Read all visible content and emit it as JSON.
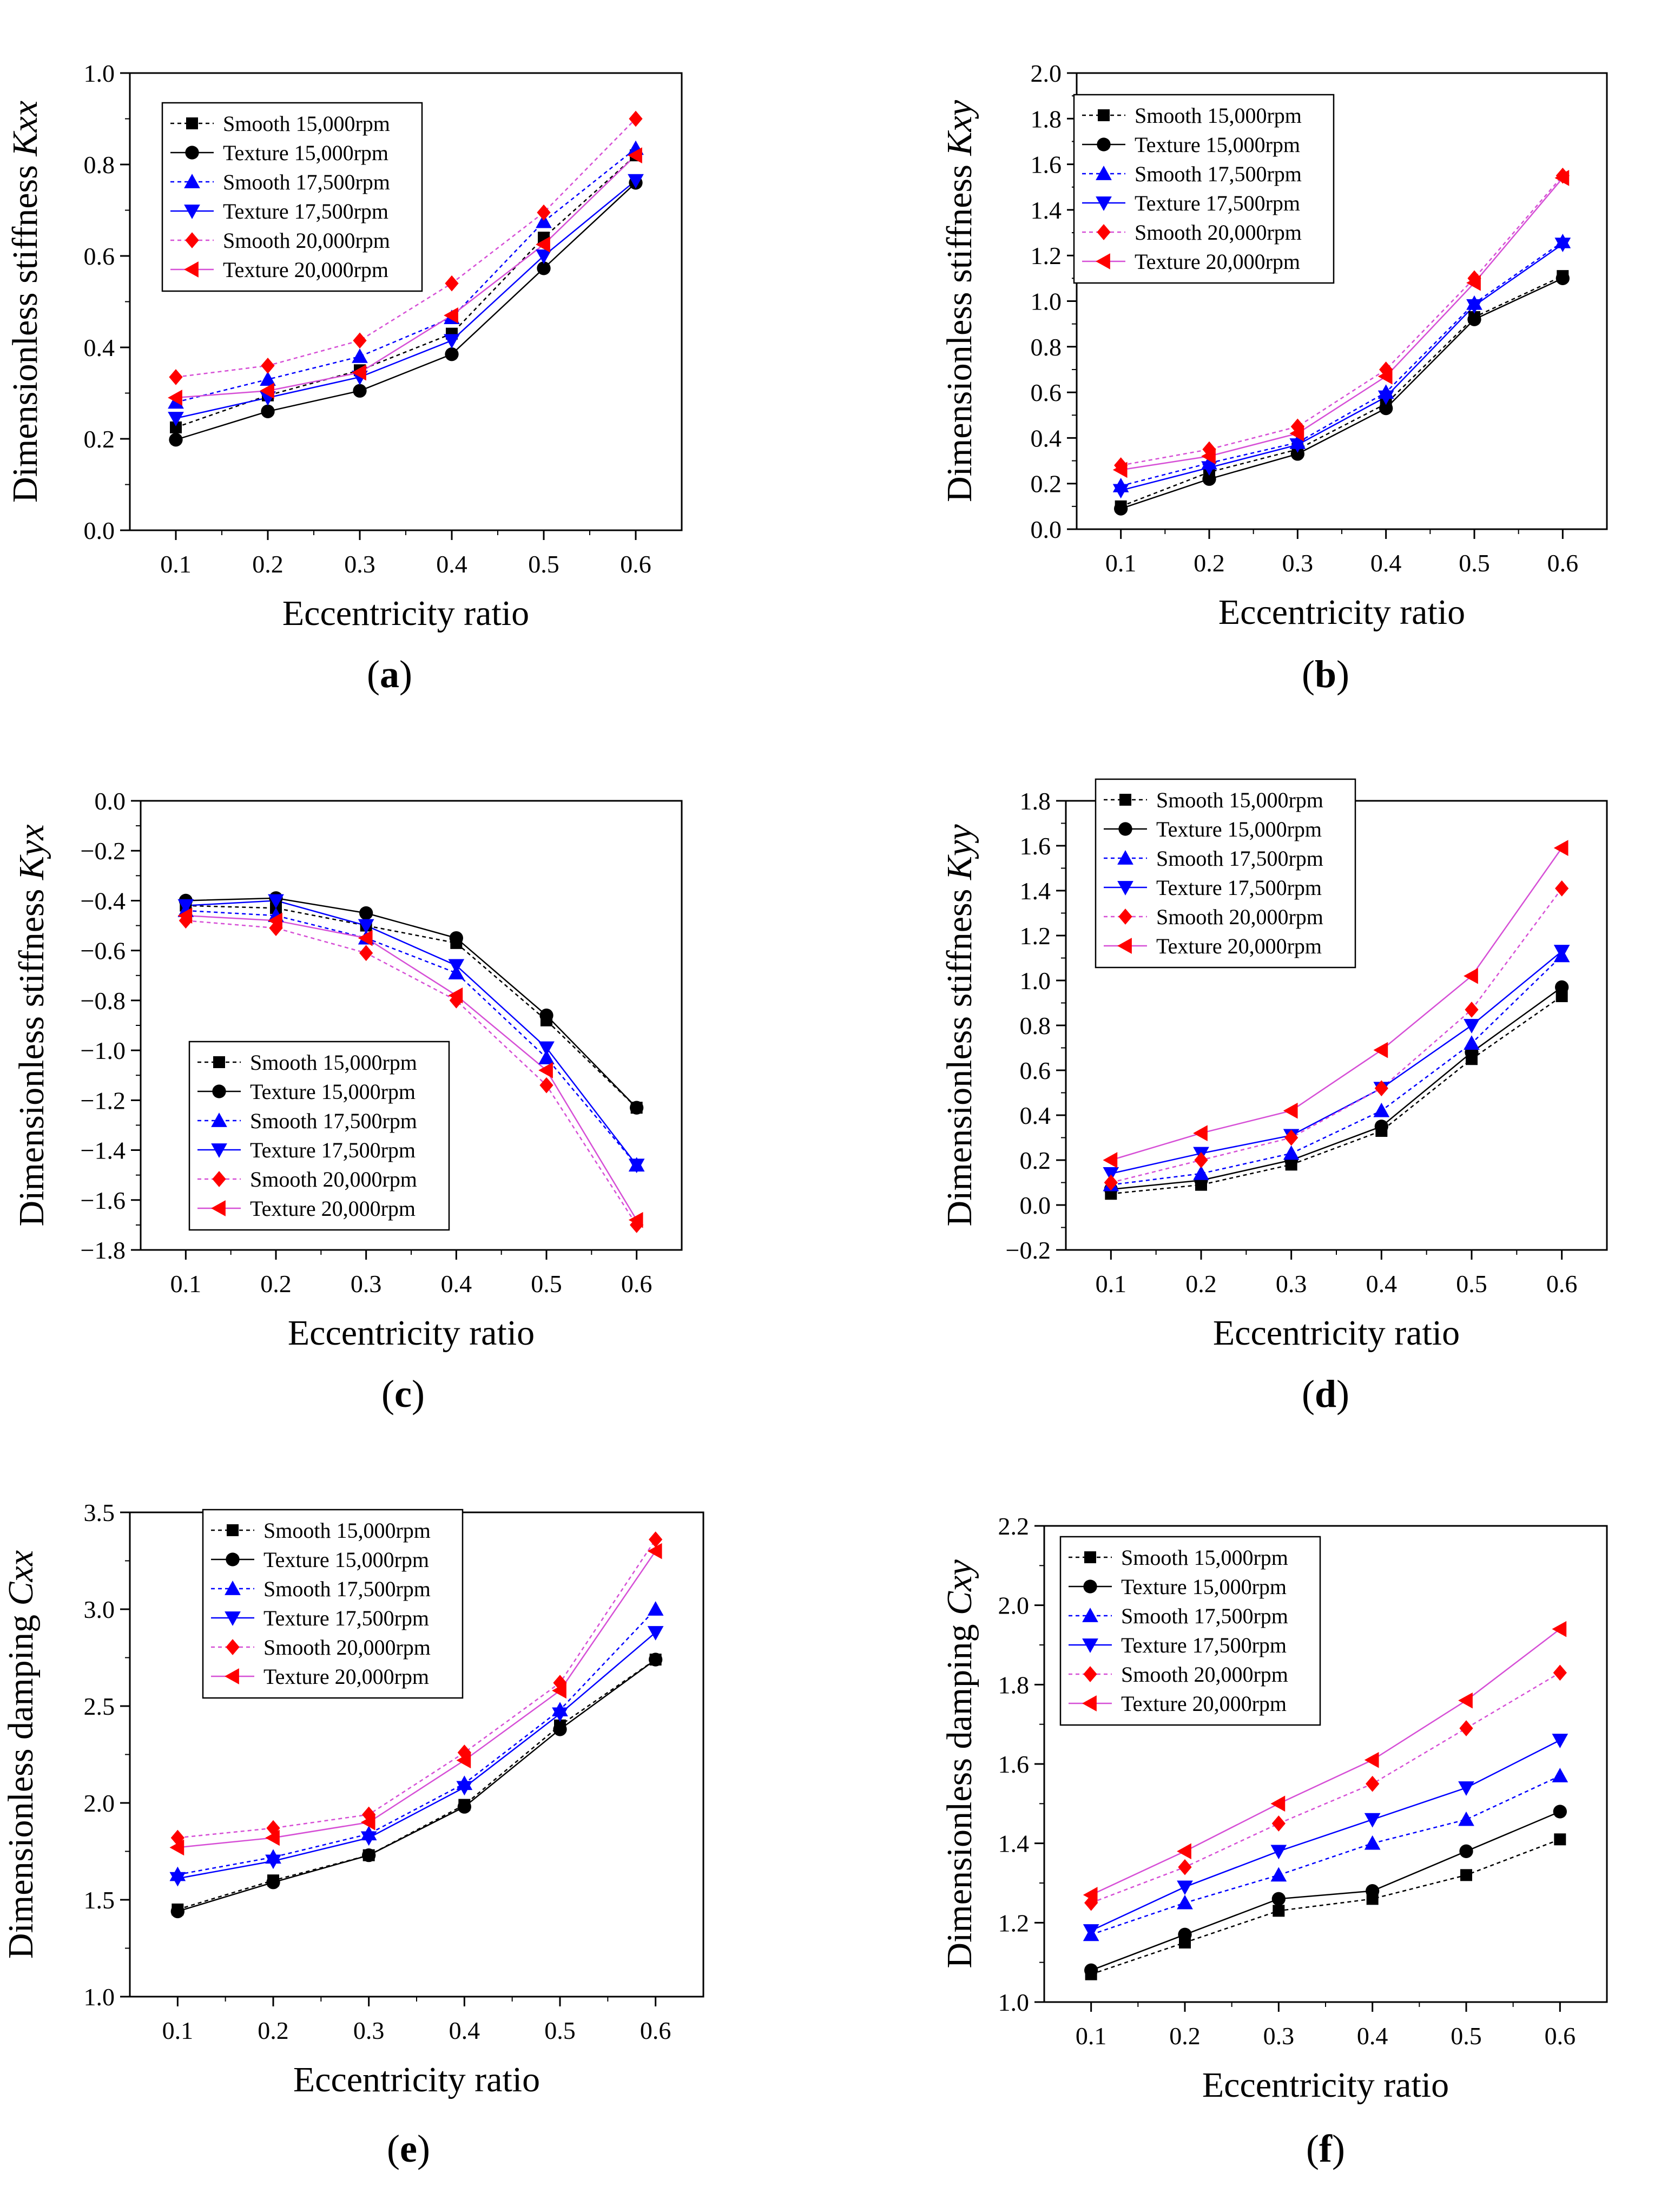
{
  "xlabel": "Eccentricity ratio",
  "colors": {
    "black": "#000000",
    "blue": "#0000ff",
    "red": "#ff0000",
    "magenta": "#d64fd6"
  },
  "series_meta": [
    {
      "name": "Smooth 15,000rpm",
      "color": "#000000",
      "marker": "square",
      "dashed": true,
      "line": "#000000"
    },
    {
      "name": "Texture 15,000rpm",
      "color": "#000000",
      "marker": "circle",
      "dashed": false,
      "line": "#000000"
    },
    {
      "name": "Smooth 17,500rpm",
      "color": "#0000ff",
      "marker": "tri-up",
      "dashed": true,
      "line": "#0000ff"
    },
    {
      "name": "Texture 17,500rpm",
      "color": "#0000ff",
      "marker": "tri-down",
      "dashed": false,
      "line": "#0000ff"
    },
    {
      "name": "Smooth 20,000rpm",
      "color": "#ff0000",
      "marker": "diamond",
      "dashed": true,
      "line": "#d64fd6"
    },
    {
      "name": "Texture 20,000rpm",
      "color": "#ff0000",
      "marker": "tri-left",
      "dashed": false,
      "line": "#d64fd6"
    }
  ],
  "chart_data": [
    {
      "panel": "(a)",
      "panel_letter": "a",
      "type": "line",
      "ylabel_main": "Dimensionless stiffness ",
      "ylabel_sym": "Kxx",
      "xlabel": "Eccentricity ratio",
      "x": [
        0.1,
        0.2,
        0.3,
        0.4,
        0.5,
        0.6
      ],
      "ylim": [
        0.0,
        1.0
      ],
      "yticks": [
        0.0,
        0.2,
        0.4,
        0.6,
        0.8,
        1.0
      ],
      "ydec": 1,
      "legend_position": "top-left",
      "series": [
        {
          "name": "Smooth 15,000rpm",
          "values": [
            0.225,
            0.295,
            0.35,
            0.43,
            0.64,
            0.82
          ]
        },
        {
          "name": "Texture 15,000rpm",
          "values": [
            0.198,
            0.26,
            0.305,
            0.385,
            0.573,
            0.76
          ]
        },
        {
          "name": "Smooth 17,500rpm",
          "values": [
            0.28,
            0.33,
            0.38,
            0.465,
            0.675,
            0.835
          ]
        },
        {
          "name": "Texture 17,500rpm",
          "values": [
            0.245,
            0.29,
            0.335,
            0.415,
            0.6,
            0.765
          ]
        },
        {
          "name": "Smooth 20,000rpm",
          "values": [
            0.335,
            0.36,
            0.415,
            0.54,
            0.695,
            0.9
          ]
        },
        {
          "name": "Texture 20,000rpm",
          "values": [
            0.29,
            0.305,
            0.345,
            0.47,
            0.625,
            0.82
          ]
        }
      ]
    },
    {
      "panel": "(b)",
      "panel_letter": "b",
      "type": "line",
      "ylabel_main": "Dimensionless stiffness ",
      "ylabel_sym": "Kxy",
      "xlabel": "Eccentricity ratio",
      "x": [
        0.1,
        0.2,
        0.3,
        0.4,
        0.5,
        0.6
      ],
      "ylim": [
        0.0,
        2.0
      ],
      "yticks": [
        0.0,
        0.2,
        0.4,
        0.6,
        0.8,
        1.0,
        1.2,
        1.4,
        1.6,
        1.8,
        2.0
      ],
      "ydec": 1,
      "legend_position": "top-left",
      "series": [
        {
          "name": "Smooth 15,000rpm",
          "values": [
            0.1,
            0.25,
            0.35,
            0.55,
            0.93,
            1.11
          ]
        },
        {
          "name": "Texture 15,000rpm",
          "values": [
            0.09,
            0.22,
            0.33,
            0.53,
            0.92,
            1.1
          ]
        },
        {
          "name": "Smooth 17,500rpm",
          "values": [
            0.19,
            0.29,
            0.38,
            0.6,
            0.99,
            1.26
          ]
        },
        {
          "name": "Texture 17,500rpm",
          "values": [
            0.17,
            0.27,
            0.37,
            0.58,
            0.98,
            1.25
          ]
        },
        {
          "name": "Smooth 20,000rpm",
          "values": [
            0.28,
            0.35,
            0.45,
            0.7,
            1.1,
            1.55
          ]
        },
        {
          "name": "Texture 20,000rpm",
          "values": [
            0.26,
            0.32,
            0.42,
            0.67,
            1.08,
            1.54
          ]
        }
      ]
    },
    {
      "panel": "(c)",
      "panel_letter": "c",
      "type": "line",
      "ylabel_main": "Dimensionless stiffness ",
      "ylabel_sym": "Kyx",
      "xlabel": "Eccentricity ratio",
      "x": [
        0.1,
        0.2,
        0.3,
        0.4,
        0.5,
        0.6
      ],
      "ylim": [
        -1.8,
        0.0
      ],
      "yticks": [
        -1.8,
        -1.6,
        -1.4,
        -1.2,
        -1.0,
        -0.8,
        -0.6,
        -0.4,
        -0.2,
        0.0
      ],
      "ydec": 1,
      "legend_position": "bottom-left",
      "series": [
        {
          "name": "Smooth 15,000rpm",
          "values": [
            -0.42,
            -0.43,
            -0.5,
            -0.57,
            -0.88,
            -1.23
          ]
        },
        {
          "name": "Texture 15,000rpm",
          "values": [
            -0.4,
            -0.39,
            -0.45,
            -0.55,
            -0.86,
            -1.23
          ]
        },
        {
          "name": "Smooth 17,500rpm",
          "values": [
            -0.44,
            -0.46,
            -0.55,
            -0.69,
            -1.03,
            -1.46
          ]
        },
        {
          "name": "Texture 17,500rpm",
          "values": [
            -0.42,
            -0.4,
            -0.5,
            -0.66,
            -0.99,
            -1.46
          ]
        },
        {
          "name": "Smooth 20,000rpm",
          "values": [
            -0.48,
            -0.51,
            -0.61,
            -0.8,
            -1.14,
            -1.7
          ]
        },
        {
          "name": "Texture 20,000rpm",
          "values": [
            -0.46,
            -0.48,
            -0.55,
            -0.78,
            -1.08,
            -1.68
          ]
        }
      ]
    },
    {
      "panel": "(d)",
      "panel_letter": "d",
      "type": "line",
      "ylabel_main": "Dimensionless stiffness ",
      "ylabel_sym": "Kyy",
      "xlabel": "Eccentricity ratio",
      "x": [
        0.1,
        0.2,
        0.3,
        0.4,
        0.5,
        0.6
      ],
      "ylim": [
        -0.2,
        1.8
      ],
      "yticks": [
        -0.2,
        0.0,
        0.2,
        0.4,
        0.6,
        0.8,
        1.0,
        1.2,
        1.4,
        1.6,
        1.8
      ],
      "ydec": 1,
      "legend_position": "top-left",
      "series": [
        {
          "name": "Smooth 15,000rpm",
          "values": [
            0.05,
            0.09,
            0.18,
            0.33,
            0.65,
            0.93
          ]
        },
        {
          "name": "Texture 15,000rpm",
          "values": [
            0.07,
            0.11,
            0.2,
            0.35,
            0.68,
            0.97
          ]
        },
        {
          "name": "Smooth 17,500rpm",
          "values": [
            0.09,
            0.14,
            0.23,
            0.42,
            0.72,
            1.11
          ]
        },
        {
          "name": "Texture 17,500rpm",
          "values": [
            0.14,
            0.23,
            0.31,
            0.52,
            0.8,
            1.13
          ]
        },
        {
          "name": "Smooth 20,000rpm",
          "values": [
            0.1,
            0.2,
            0.3,
            0.52,
            0.87,
            1.41
          ]
        },
        {
          "name": "Texture 20,000rpm",
          "values": [
            0.2,
            0.32,
            0.42,
            0.69,
            1.02,
            1.59
          ]
        }
      ]
    },
    {
      "panel": "(e)",
      "panel_letter": "e",
      "type": "line",
      "ylabel_main": "Dimensionless damping ",
      "ylabel_sym": "Cxx",
      "xlabel": "Eccentricity ratio",
      "x": [
        0.1,
        0.2,
        0.3,
        0.4,
        0.5,
        0.6
      ],
      "ylim": [
        1.0,
        3.5
      ],
      "yticks": [
        1.0,
        1.5,
        2.0,
        2.5,
        3.0,
        3.5
      ],
      "ydec": 1,
      "legend_position": "top-left",
      "series": [
        {
          "name": "Smooth 15,000rpm",
          "values": [
            1.45,
            1.6,
            1.73,
            1.99,
            2.4,
            2.74
          ]
        },
        {
          "name": "Texture 15,000rpm",
          "values": [
            1.44,
            1.59,
            1.73,
            1.98,
            2.38,
            2.74
          ]
        },
        {
          "name": "Smooth 17,500rpm",
          "values": [
            1.63,
            1.72,
            1.84,
            2.1,
            2.48,
            3.0
          ]
        },
        {
          "name": "Texture 17,500rpm",
          "values": [
            1.61,
            1.7,
            1.82,
            2.08,
            2.46,
            2.88
          ]
        },
        {
          "name": "Smooth 20,000rpm",
          "values": [
            1.82,
            1.87,
            1.94,
            2.26,
            2.62,
            3.36
          ]
        },
        {
          "name": "Texture 20,000rpm",
          "values": [
            1.77,
            1.82,
            1.9,
            2.22,
            2.58,
            3.3
          ]
        }
      ]
    },
    {
      "panel": "(f)",
      "panel_letter": "f",
      "type": "line",
      "ylabel_main": "Dimensionless damping ",
      "ylabel_sym": "Cxy",
      "xlabel": "Eccentricity ratio",
      "x": [
        0.1,
        0.2,
        0.3,
        0.4,
        0.5,
        0.6
      ],
      "ylim": [
        1.0,
        2.2
      ],
      "yticks": [
        1.0,
        1.2,
        1.4,
        1.6,
        1.8,
        2.0,
        2.2
      ],
      "ydec": 1,
      "legend_position": "top-left",
      "series": [
        {
          "name": "Smooth 15,000rpm",
          "values": [
            1.07,
            1.15,
            1.23,
            1.26,
            1.32,
            1.41
          ]
        },
        {
          "name": "Texture 15,000rpm",
          "values": [
            1.08,
            1.17,
            1.26,
            1.28,
            1.38,
            1.48
          ]
        },
        {
          "name": "Smooth 17,500rpm",
          "values": [
            1.17,
            1.25,
            1.32,
            1.4,
            1.46,
            1.57
          ]
        },
        {
          "name": "Texture 17,500rpm",
          "values": [
            1.18,
            1.29,
            1.38,
            1.46,
            1.54,
            1.66
          ]
        },
        {
          "name": "Smooth 20,000rpm",
          "values": [
            1.25,
            1.34,
            1.45,
            1.55,
            1.69,
            1.83
          ]
        },
        {
          "name": "Texture 20,000rpm",
          "values": [
            1.27,
            1.38,
            1.5,
            1.61,
            1.76,
            1.94
          ]
        }
      ]
    }
  ]
}
